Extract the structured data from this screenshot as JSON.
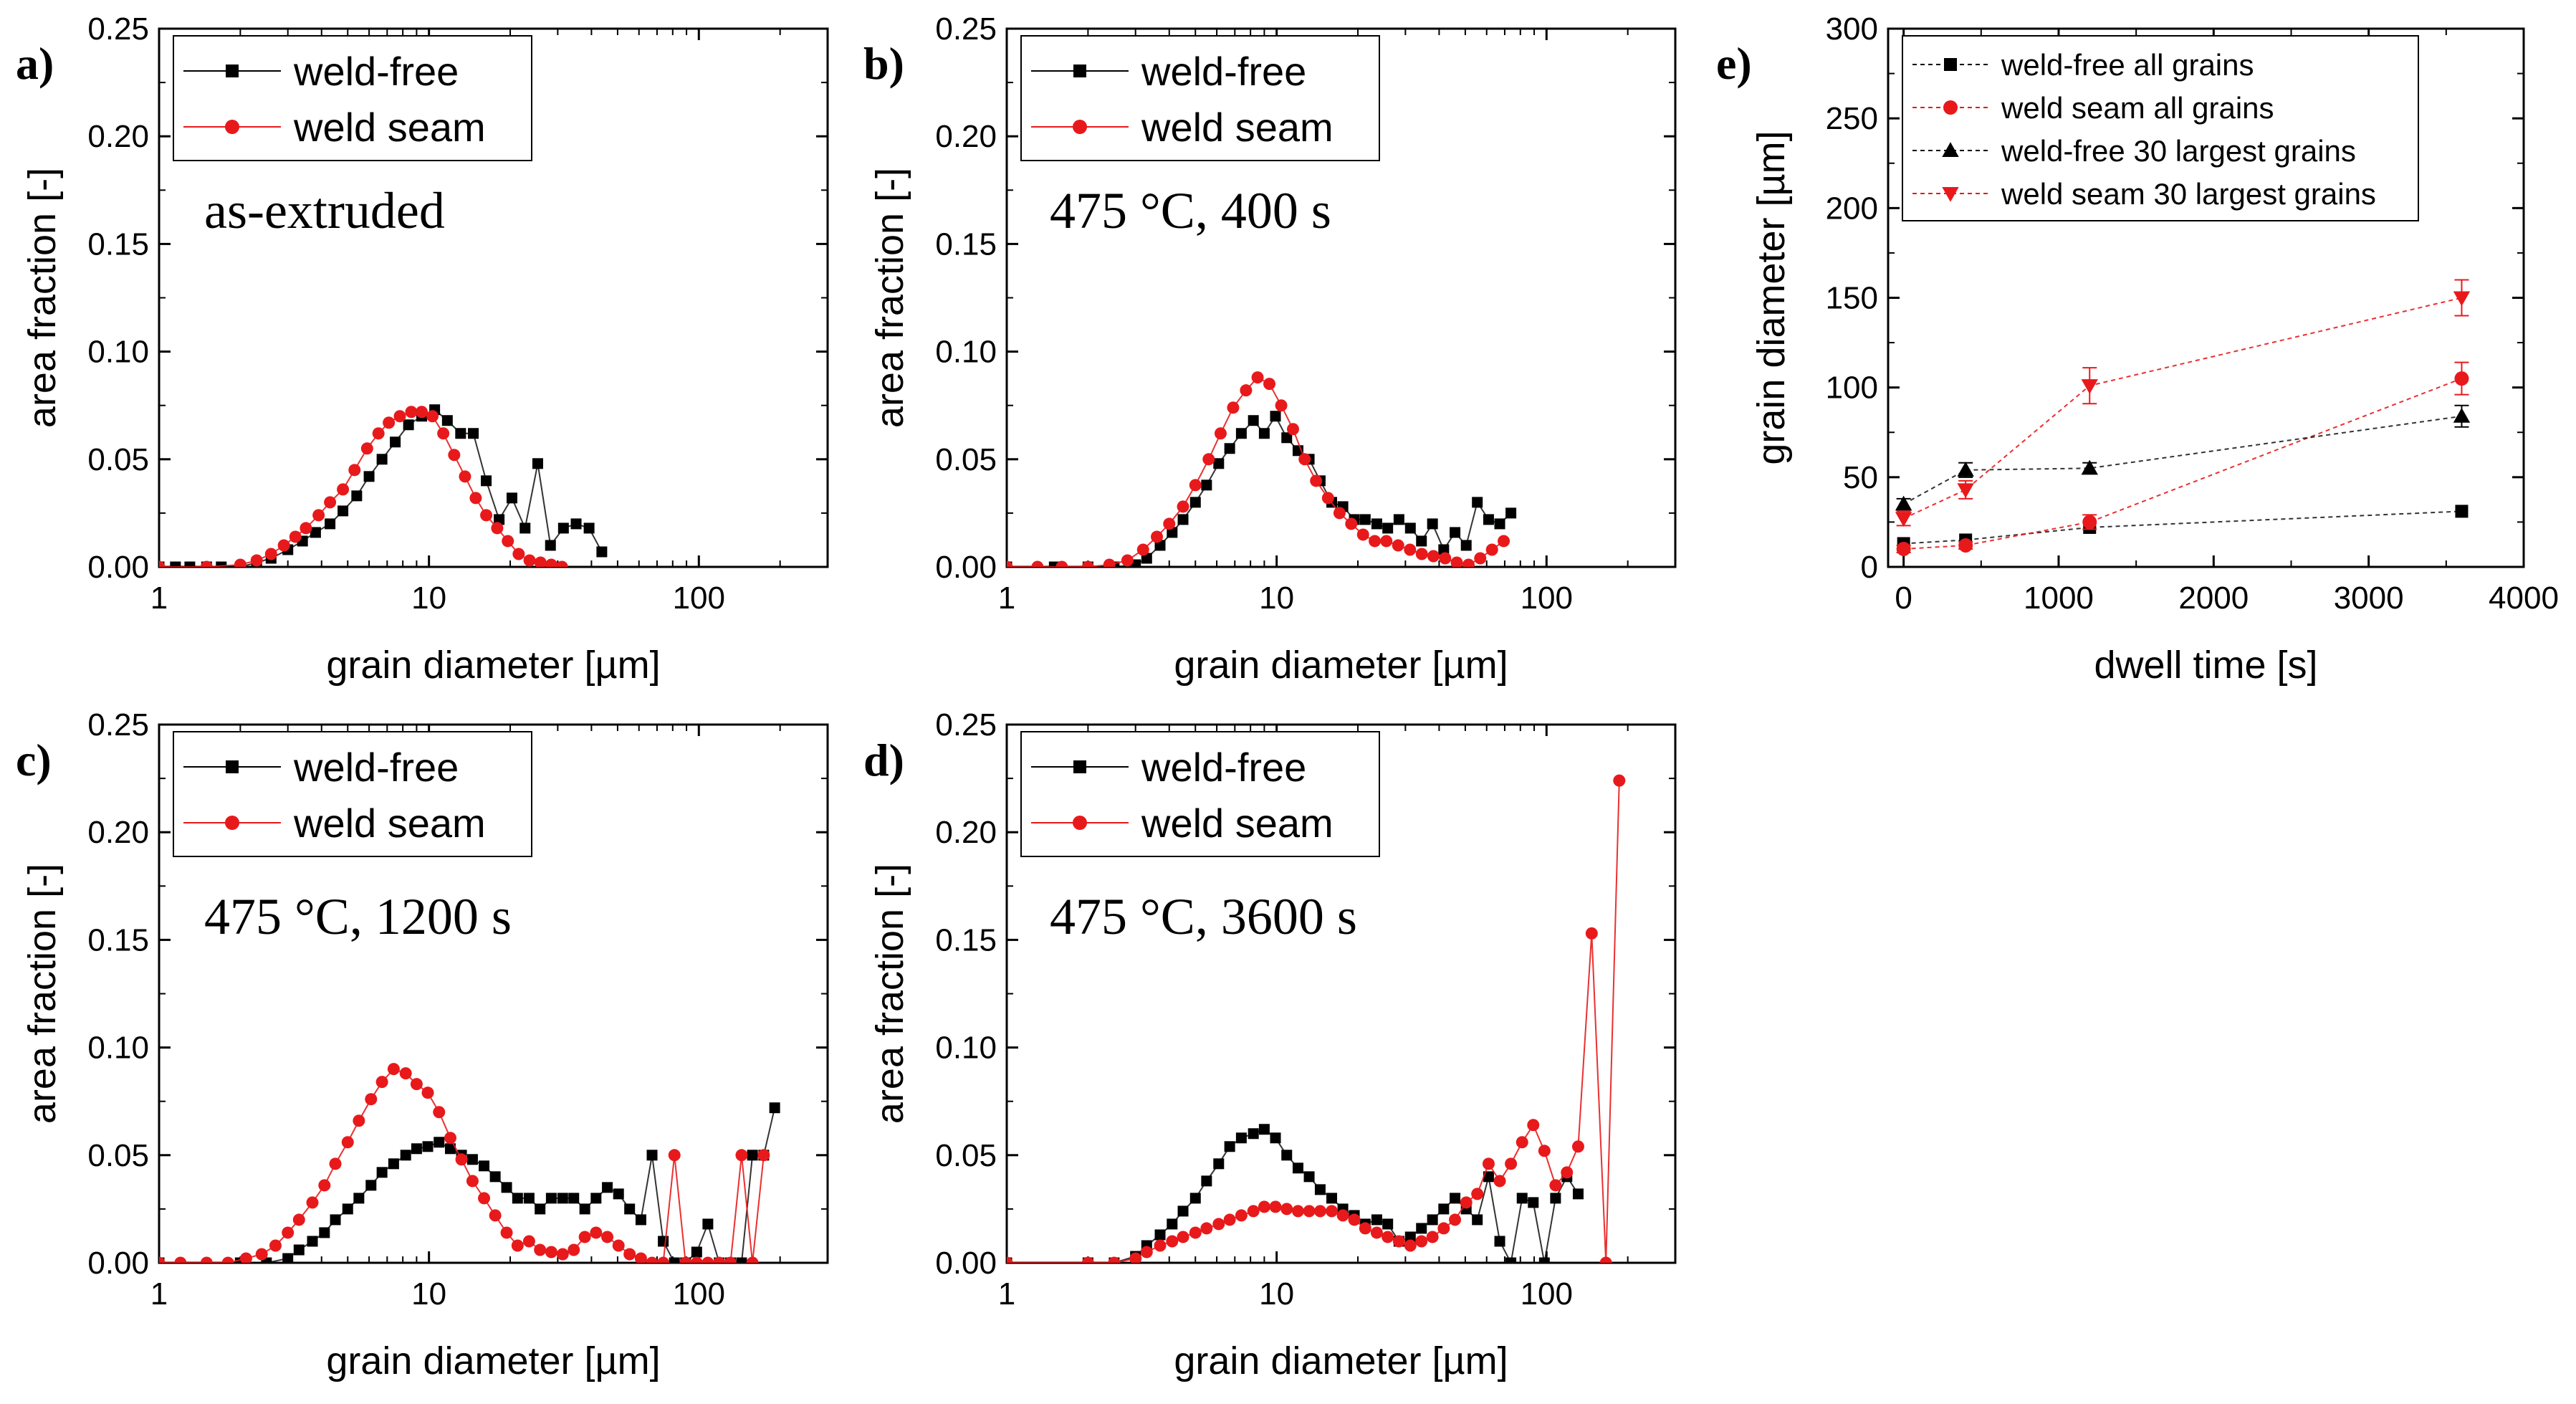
{
  "chart_data": [
    {
      "id": "a",
      "type": "line",
      "panel_label": "a)",
      "annotation": "as-extruded",
      "xlabel": "grain diameter [µm]",
      "ylabel": "area fraction [-]",
      "xscale": "log",
      "xlim": [
        1,
        300
      ],
      "ylim": [
        0,
        0.25
      ],
      "xticks": [
        1,
        10,
        100
      ],
      "xtick_labels": [
        "1",
        "10",
        "100"
      ],
      "yticks": [
        0,
        0.05,
        0.1,
        0.15,
        0.2,
        0.25
      ],
      "ytick_labels": [
        "0.00",
        "0.05",
        "0.10",
        "0.15",
        "0.20",
        "0.25"
      ],
      "legend_position": "top-left",
      "series": [
        {
          "name": "weld-free",
          "color": "#000000",
          "marker": "square",
          "x": [
            1.0,
            1.15,
            1.3,
            1.5,
            1.7,
            2.0,
            2.3,
            2.6,
            3.0,
            3.4,
            3.8,
            4.3,
            4.8,
            5.4,
            6.0,
            6.7,
            7.5,
            8.4,
            9.4,
            10.5,
            11.7,
            13.1,
            14.6,
            16.3,
            18.2,
            20.3,
            22.7,
            25.3,
            28.2,
            31.5,
            35.1,
            39.2,
            43.7
          ],
          "y": [
            0.0,
            0.0,
            0.0,
            0.0,
            0.0,
            0.0,
            0.002,
            0.004,
            0.008,
            0.012,
            0.016,
            0.02,
            0.026,
            0.033,
            0.042,
            0.05,
            0.058,
            0.066,
            0.07,
            0.073,
            0.068,
            0.062,
            0.062,
            0.04,
            0.022,
            0.032,
            0.018,
            0.048,
            0.01,
            0.018,
            0.02,
            0.018,
            0.007
          ]
        },
        {
          "name": "weld seam",
          "color": "#e8191b",
          "marker": "circle",
          "x": [
            1.0,
            1.5,
            2.0,
            2.3,
            2.6,
            2.9,
            3.2,
            3.5,
            3.9,
            4.3,
            4.8,
            5.3,
            5.9,
            6.5,
            7.1,
            7.8,
            8.6,
            9.4,
            10.3,
            11.3,
            12.4,
            13.6,
            14.9,
            16.3,
            17.9,
            19.6,
            21.5,
            23.6,
            25.9,
            28.4,
            31.1
          ],
          "y": [
            0.0,
            0.0,
            0.001,
            0.003,
            0.006,
            0.01,
            0.014,
            0.018,
            0.024,
            0.03,
            0.036,
            0.045,
            0.055,
            0.062,
            0.067,
            0.07,
            0.072,
            0.072,
            0.07,
            0.062,
            0.052,
            0.042,
            0.032,
            0.024,
            0.018,
            0.012,
            0.006,
            0.003,
            0.002,
            0.001,
            0.0
          ]
        }
      ]
    },
    {
      "id": "b",
      "type": "line",
      "panel_label": "b)",
      "annotation": "475 °C, 400 s",
      "xlabel": "grain diameter [µm]",
      "ylabel": "area fraction [-]",
      "xscale": "log",
      "xlim": [
        1,
        300
      ],
      "ylim": [
        0,
        0.25
      ],
      "xticks": [
        1,
        10,
        100
      ],
      "xtick_labels": [
        "1",
        "10",
        "100"
      ],
      "yticks": [
        0,
        0.05,
        0.1,
        0.15,
        0.2,
        0.25
      ],
      "ytick_labels": [
        "0.00",
        "0.05",
        "0.10",
        "0.15",
        "0.20",
        "0.25"
      ],
      "legend_position": "top-left",
      "series": [
        {
          "name": "weld-free",
          "color": "#000000",
          "marker": "square",
          "x": [
            1.0,
            1.5,
            2.0,
            2.5,
            3.0,
            3.3,
            3.7,
            4.1,
            4.5,
            5.0,
            5.5,
            6.1,
            6.7,
            7.4,
            8.2,
            9.0,
            9.9,
            10.9,
            12.0,
            13.2,
            14.5,
            16.0,
            17.6,
            19.4,
            21.3,
            23.5,
            25.8,
            28.4,
            31.3,
            34.4,
            37.8,
            41.6,
            45.8,
            50.4,
            55.4,
            61.0,
            67.1,
            73.8
          ],
          "y": [
            0.0,
            0.0,
            0.0,
            0.0,
            0.001,
            0.004,
            0.01,
            0.016,
            0.022,
            0.03,
            0.038,
            0.048,
            0.055,
            0.062,
            0.068,
            0.062,
            0.07,
            0.06,
            0.054,
            0.05,
            0.04,
            0.03,
            0.028,
            0.022,
            0.022,
            0.02,
            0.018,
            0.022,
            0.018,
            0.012,
            0.02,
            0.008,
            0.016,
            0.01,
            0.03,
            0.022,
            0.02,
            0.025
          ]
        },
        {
          "name": "weld seam",
          "color": "#e8191b",
          "marker": "circle",
          "x": [
            1.0,
            1.3,
            1.6,
            2.0,
            2.4,
            2.8,
            3.2,
            3.6,
            4.0,
            4.5,
            5.0,
            5.6,
            6.2,
            6.9,
            7.7,
            8.5,
            9.4,
            10.4,
            11.5,
            12.7,
            14.0,
            15.5,
            17.1,
            18.9,
            20.9,
            23.1,
            25.5,
            28.2,
            31.2,
            34.5,
            38.1,
            42.1,
            46.5,
            51.4,
            56.8,
            62.8,
            69.4
          ],
          "y": [
            0.0,
            0.0,
            0.0,
            0.0,
            0.001,
            0.003,
            0.008,
            0.014,
            0.02,
            0.028,
            0.038,
            0.05,
            0.062,
            0.074,
            0.082,
            0.088,
            0.085,
            0.075,
            0.064,
            0.05,
            0.04,
            0.032,
            0.025,
            0.02,
            0.015,
            0.012,
            0.012,
            0.01,
            0.008,
            0.006,
            0.005,
            0.004,
            0.002,
            0.001,
            0.004,
            0.008,
            0.012
          ]
        }
      ]
    },
    {
      "id": "c",
      "type": "line",
      "panel_label": "c)",
      "annotation": "475 °C, 1200 s",
      "xlabel": "grain diameter [µm]",
      "ylabel": "area fraction [-]",
      "xscale": "log",
      "xlim": [
        1,
        300
      ],
      "ylim": [
        0,
        0.25
      ],
      "xticks": [
        1,
        10,
        100
      ],
      "xtick_labels": [
        "1",
        "10",
        "100"
      ],
      "yticks": [
        0,
        0.05,
        0.1,
        0.15,
        0.2,
        0.25
      ],
      "ytick_labels": [
        "0.00",
        "0.05",
        "0.10",
        "0.15",
        "0.20",
        "0.25"
      ],
      "legend_position": "top-left",
      "series": [
        {
          "name": "weld-free",
          "color": "#000000",
          "marker": "square",
          "x": [
            1.0,
            2.0,
            2.5,
            3.0,
            3.3,
            3.7,
            4.1,
            4.5,
            5.0,
            5.5,
            6.1,
            6.7,
            7.4,
            8.2,
            9.0,
            9.9,
            10.9,
            12.0,
            13.2,
            14.5,
            16.0,
            17.6,
            19.4,
            21.3,
            23.5,
            25.8,
            28.4,
            31.3,
            34.4,
            37.8,
            41.6,
            45.8,
            50.4,
            55.4,
            61.0,
            67.1,
            73.8,
            81.2,
            89.3,
            98.2,
            108,
            119,
            131,
            144,
            158,
            174,
            191
          ],
          "y": [
            0.0,
            0.0,
            0.0,
            0.002,
            0.006,
            0.01,
            0.014,
            0.02,
            0.025,
            0.03,
            0.036,
            0.042,
            0.046,
            0.05,
            0.053,
            0.054,
            0.056,
            0.053,
            0.05,
            0.048,
            0.045,
            0.04,
            0.035,
            0.03,
            0.03,
            0.025,
            0.03,
            0.03,
            0.03,
            0.025,
            0.03,
            0.035,
            0.032,
            0.025,
            0.02,
            0.05,
            0.01,
            0.0,
            0.0,
            0.005,
            0.018,
            0.0,
            0.0,
            0.0,
            0.05,
            0.05,
            0.072
          ]
        },
        {
          "name": "weld seam",
          "color": "#e8191b",
          "marker": "circle",
          "x": [
            1.0,
            1.2,
            1.5,
            1.8,
            2.1,
            2.4,
            2.7,
            3.0,
            3.3,
            3.7,
            4.1,
            4.5,
            5.0,
            5.5,
            6.1,
            6.7,
            7.4,
            8.2,
            9.0,
            9.9,
            10.9,
            12.0,
            13.2,
            14.5,
            16.0,
            17.6,
            19.4,
            21.3,
            23.5,
            25.8,
            28.4,
            31.3,
            34.4,
            37.8,
            41.6,
            45.8,
            50.4,
            55.4,
            61.0,
            67.1,
            73.8,
            81.2,
            89.3,
            98.2,
            108,
            119,
            131,
            144,
            158,
            174
          ],
          "y": [
            0.0,
            0.0,
            0.0,
            0.0,
            0.002,
            0.004,
            0.008,
            0.014,
            0.02,
            0.028,
            0.036,
            0.046,
            0.056,
            0.066,
            0.076,
            0.084,
            0.09,
            0.088,
            0.083,
            0.079,
            0.07,
            0.058,
            0.048,
            0.038,
            0.03,
            0.022,
            0.014,
            0.008,
            0.01,
            0.006,
            0.005,
            0.004,
            0.006,
            0.012,
            0.014,
            0.012,
            0.008,
            0.004,
            0.002,
            0.0,
            0.0,
            0.05,
            0.0,
            0.0,
            0.0,
            0.0,
            0.0,
            0.05,
            0.0,
            0.05
          ]
        }
      ]
    },
    {
      "id": "d",
      "type": "line",
      "panel_label": "d)",
      "annotation": "475 °C, 3600 s",
      "xlabel": "grain diameter [µm]",
      "ylabel": "area fraction [-]",
      "xscale": "log",
      "xlim": [
        1,
        300
      ],
      "ylim": [
        0,
        0.25
      ],
      "xticks": [
        1,
        10,
        100
      ],
      "xtick_labels": [
        "1",
        "10",
        "100"
      ],
      "yticks": [
        0,
        0.05,
        0.1,
        0.15,
        0.2,
        0.25
      ],
      "ytick_labels": [
        "0.00",
        "0.05",
        "0.10",
        "0.15",
        "0.20",
        "0.25"
      ],
      "legend_position": "top-left",
      "series": [
        {
          "name": "weld-free",
          "color": "#000000",
          "marker": "square",
          "x": [
            1.0,
            2.0,
            2.5,
            3.0,
            3.3,
            3.7,
            4.1,
            4.5,
            5.0,
            5.5,
            6.1,
            6.7,
            7.4,
            8.2,
            9.0,
            9.9,
            10.9,
            12.0,
            13.2,
            14.5,
            16.0,
            17.6,
            19.4,
            21.3,
            23.5,
            25.8,
            28.4,
            31.3,
            34.4,
            37.8,
            41.6,
            45.8,
            50.4,
            55.4,
            61.0,
            67.1,
            73.8,
            81.2,
            89.3,
            98.2,
            108,
            119,
            131
          ],
          "y": [
            0.0,
            0.0,
            0.0,
            0.003,
            0.008,
            0.013,
            0.018,
            0.024,
            0.03,
            0.038,
            0.046,
            0.054,
            0.058,
            0.06,
            0.062,
            0.058,
            0.05,
            0.044,
            0.04,
            0.034,
            0.03,
            0.025,
            0.022,
            0.018,
            0.02,
            0.018,
            0.01,
            0.012,
            0.016,
            0.02,
            0.025,
            0.03,
            0.025,
            0.02,
            0.04,
            0.01,
            0.0,
            0.03,
            0.028,
            0.0,
            0.03,
            0.04,
            0.032
          ]
        },
        {
          "name": "weld seam",
          "color": "#e8191b",
          "marker": "circle",
          "x": [
            1.0,
            2.0,
            2.5,
            3.0,
            3.3,
            3.7,
            4.1,
            4.5,
            5.0,
            5.5,
            6.1,
            6.7,
            7.4,
            8.2,
            9.0,
            9.9,
            10.9,
            12.0,
            13.2,
            14.5,
            16.0,
            17.6,
            19.4,
            21.3,
            23.5,
            25.8,
            28.4,
            31.3,
            34.4,
            37.8,
            41.6,
            45.8,
            50.4,
            55.4,
            61.0,
            67.1,
            73.8,
            81.2,
            89.3,
            98.2,
            108,
            119,
            131,
            147,
            166,
            186
          ],
          "y": [
            0.0,
            0.0,
            0.0,
            0.002,
            0.005,
            0.008,
            0.01,
            0.012,
            0.014,
            0.016,
            0.018,
            0.02,
            0.022,
            0.024,
            0.026,
            0.026,
            0.025,
            0.024,
            0.024,
            0.024,
            0.024,
            0.022,
            0.02,
            0.016,
            0.014,
            0.012,
            0.01,
            0.008,
            0.01,
            0.012,
            0.016,
            0.02,
            0.028,
            0.032,
            0.046,
            0.038,
            0.046,
            0.056,
            0.064,
            0.052,
            0.036,
            0.042,
            0.054,
            0.153,
            0.0,
            0.224
          ]
        }
      ]
    },
    {
      "id": "e",
      "type": "line",
      "panel_label": "e)",
      "xlabel": "dwell time [s]",
      "ylabel": "grain diameter [µm]",
      "xscale": "linear",
      "xlim": [
        -100,
        4000
      ],
      "ylim": [
        0,
        300
      ],
      "xticks": [
        0,
        1000,
        2000,
        3000,
        4000
      ],
      "xtick_labels": [
        "0",
        "1000",
        "2000",
        "3000",
        "4000"
      ],
      "yticks": [
        0,
        50,
        100,
        150,
        200,
        250,
        300
      ],
      "ytick_labels": [
        "0",
        "50",
        "100",
        "150",
        "200",
        "250",
        "300"
      ],
      "legend_position": "top-left",
      "series": [
        {
          "name": "weld-free all grains",
          "color": "#000000",
          "marker": "square",
          "x": [
            0,
            400,
            1200,
            3600
          ],
          "y": [
            13,
            15,
            22,
            31
          ]
        },
        {
          "name": "weld seam all grains",
          "color": "#e8191b",
          "marker": "circle",
          "x": [
            0,
            400,
            1200,
            3600
          ],
          "y": [
            10,
            12,
            25,
            105
          ],
          "yerr": [
            2,
            2,
            4,
            9
          ]
        },
        {
          "name": "weld-free 30 largest grains",
          "color": "#000000",
          "marker": "triangle-up",
          "x": [
            0,
            400,
            1200,
            3600
          ],
          "y": [
            35,
            54,
            55,
            84
          ],
          "yerr": [
            3,
            4,
            3,
            6
          ]
        },
        {
          "name": "weld seam 30 largest grains",
          "color": "#e8191b",
          "marker": "triangle-down",
          "x": [
            0,
            400,
            1200,
            3600
          ],
          "y": [
            27,
            43,
            101,
            150
          ],
          "yerr": [
            4,
            5,
            10,
            10
          ]
        }
      ]
    }
  ]
}
